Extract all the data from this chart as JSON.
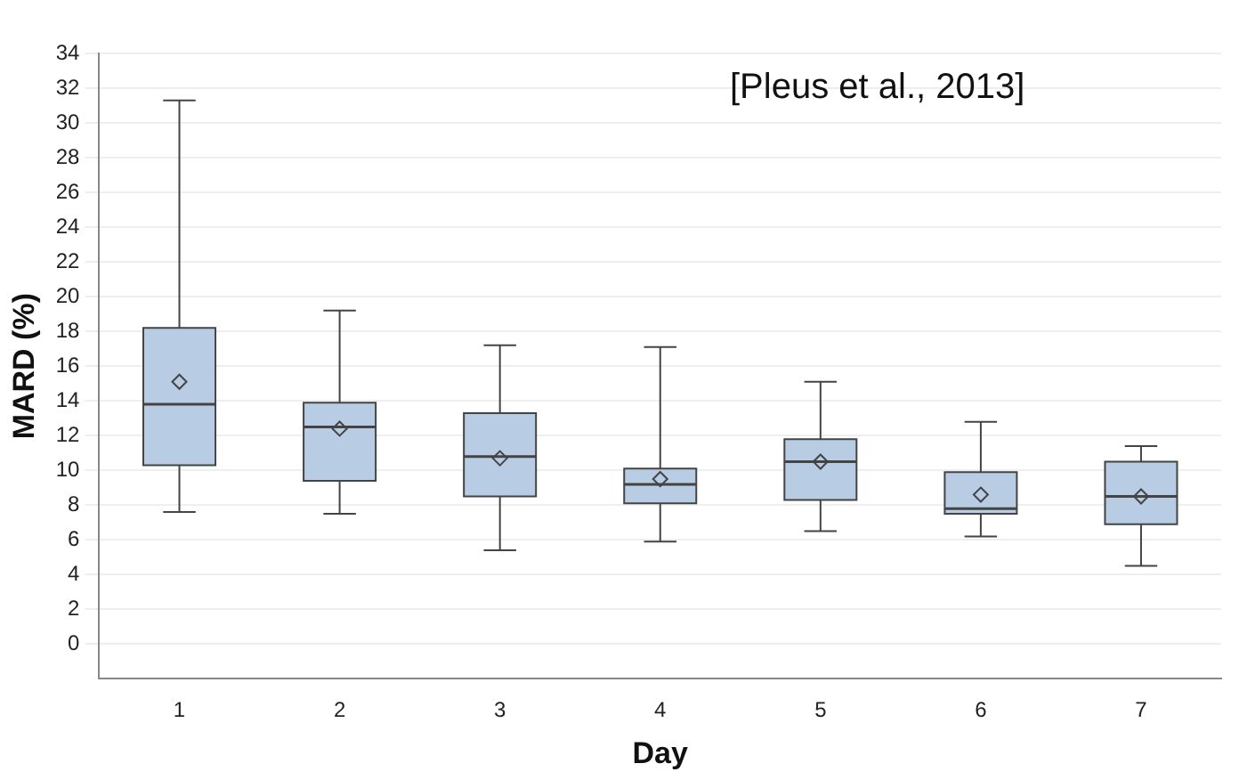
{
  "chart_data": {
    "type": "box",
    "xlabel": "Day",
    "ylabel": "MARD (%)",
    "categories": [
      "1",
      "2",
      "3",
      "4",
      "5",
      "6",
      "7"
    ],
    "color": "#b8cce4",
    "boxes": [
      {
        "low": 7.6,
        "q1": 10.3,
        "median": 13.8,
        "q3": 18.2,
        "high": 31.3,
        "mean": 15.1
      },
      {
        "low": 7.5,
        "q1": 9.4,
        "median": 12.5,
        "q3": 13.9,
        "high": 19.2,
        "mean": 12.4
      },
      {
        "low": 5.4,
        "q1": 8.5,
        "median": 10.8,
        "q3": 13.3,
        "high": 17.2,
        "mean": 10.7
      },
      {
        "low": 5.9,
        "q1": 8.1,
        "median": 9.2,
        "q3": 10.1,
        "high": 17.1,
        "mean": 9.5
      },
      {
        "low": 6.5,
        "q1": 8.3,
        "median": 10.5,
        "q3": 11.8,
        "high": 15.1,
        "mean": 10.5
      },
      {
        "low": 6.2,
        "q1": 7.5,
        "median": 7.8,
        "q3": 9.9,
        "high": 12.8,
        "mean": 8.6
      },
      {
        "low": 4.5,
        "q1": 6.9,
        "median": 8.5,
        "q3": 10.5,
        "high": 11.4,
        "mean": 8.5
      }
    ],
    "ylim": [
      -2,
      34
    ],
    "yticks": [
      0,
      2,
      4,
      6,
      8,
      10,
      12,
      14,
      16,
      18,
      20,
      22,
      24,
      26,
      28,
      30,
      32,
      34
    ],
    "grid": "y",
    "legend": false,
    "annotations": [
      "[Pleus et al., 2013]"
    ]
  }
}
